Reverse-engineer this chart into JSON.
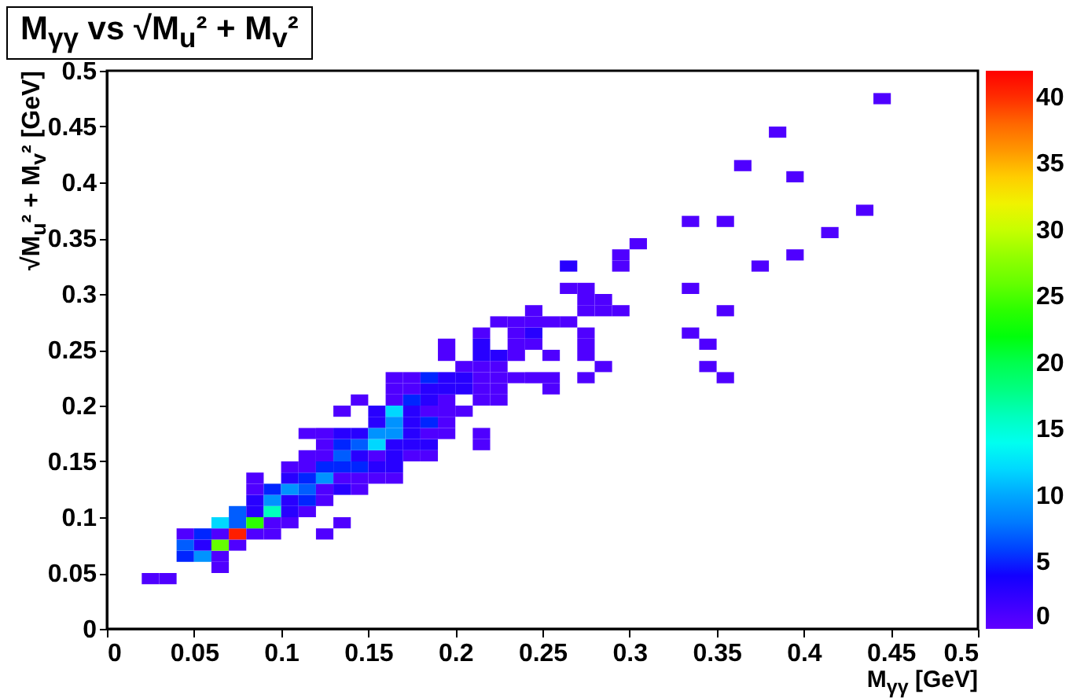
{
  "chart_data": {
    "type": "scatter",
    "marker": "square",
    "title": "M$_{γγ}$ vs √M$_{u}$² + M$_{v}$²",
    "xlabel": "M$_{γγ}$ [GeV]",
    "ylabel": "√M$_{u}$² + M$_{v}$² [GeV]",
    "xlim": [
      0,
      0.5
    ],
    "ylim": [
      0,
      0.5
    ],
    "xticks": [
      0,
      0.05,
      0.1,
      0.15,
      0.2,
      0.25,
      0.3,
      0.35,
      0.4,
      0.45,
      0.5
    ],
    "yticks": [
      0,
      0.05,
      0.1,
      0.15,
      0.2,
      0.25,
      0.3,
      0.35,
      0.4,
      0.45,
      0.5
    ],
    "clim": [
      0,
      42
    ],
    "cticks": [
      0,
      5,
      10,
      15,
      20,
      25,
      30,
      35,
      40
    ],
    "x": [
      0.025,
      0.035,
      0.065,
      0.045,
      0.055,
      0.065,
      0.045,
      0.055,
      0.065,
      0.075,
      0.045,
      0.055,
      0.065,
      0.075,
      0.085,
      0.095,
      0.125,
      0.065,
      0.075,
      0.085,
      0.095,
      0.105,
      0.135,
      0.075,
      0.085,
      0.095,
      0.105,
      0.115,
      0.085,
      0.095,
      0.105,
      0.115,
      0.125,
      0.085,
      0.095,
      0.105,
      0.115,
      0.125,
      0.135,
      0.145,
      0.085,
      0.105,
      0.115,
      0.125,
      0.135,
      0.145,
      0.155,
      0.165,
      0.105,
      0.115,
      0.125,
      0.135,
      0.145,
      0.155,
      0.165,
      0.115,
      0.125,
      0.135,
      0.145,
      0.155,
      0.165,
      0.175,
      0.185,
      0.125,
      0.135,
      0.145,
      0.155,
      0.165,
      0.175,
      0.185,
      0.215,
      0.115,
      0.125,
      0.135,
      0.145,
      0.155,
      0.165,
      0.175,
      0.185,
      0.195,
      0.215,
      0.155,
      0.165,
      0.175,
      0.185,
      0.195,
      0.135,
      0.155,
      0.165,
      0.175,
      0.185,
      0.195,
      0.205,
      0.145,
      0.165,
      0.175,
      0.185,
      0.195,
      0.215,
      0.225,
      0.165,
      0.175,
      0.185,
      0.195,
      0.205,
      0.215,
      0.225,
      0.255,
      0.165,
      0.175,
      0.185,
      0.195,
      0.205,
      0.215,
      0.225,
      0.235,
      0.245,
      0.255,
      0.275,
      0.355,
      0.205,
      0.215,
      0.225,
      0.285,
      0.345,
      0.195,
      0.215,
      0.225,
      0.235,
      0.255,
      0.275,
      0.195,
      0.215,
      0.235,
      0.245,
      0.275,
      0.345,
      0.215,
      0.235,
      0.245,
      0.275,
      0.335,
      0.225,
      0.235,
      0.245,
      0.255,
      0.265,
      0.245,
      0.275,
      0.285,
      0.295,
      0.355,
      0.275,
      0.285,
      0.265,
      0.275,
      0.335,
      0.265,
      0.295,
      0.375,
      0.295,
      0.395,
      0.305,
      0.415,
      0.335,
      0.355,
      0.435,
      0.395,
      0.365,
      0.385,
      0.445
    ],
    "values": [
      0.045,
      0.045,
      0.055,
      0.065,
      0.065,
      0.065,
      0.075,
      0.075,
      0.075,
      0.075,
      0.085,
      0.085,
      0.085,
      0.085,
      0.085,
      0.085,
      0.085,
      0.095,
      0.095,
      0.095,
      0.095,
      0.095,
      0.095,
      0.105,
      0.105,
      0.105,
      0.105,
      0.105,
      0.115,
      0.115,
      0.115,
      0.115,
      0.115,
      0.125,
      0.125,
      0.125,
      0.125,
      0.125,
      0.125,
      0.125,
      0.135,
      0.135,
      0.135,
      0.135,
      0.135,
      0.135,
      0.135,
      0.135,
      0.145,
      0.145,
      0.145,
      0.145,
      0.145,
      0.145,
      0.145,
      0.155,
      0.155,
      0.155,
      0.155,
      0.155,
      0.155,
      0.155,
      0.155,
      0.165,
      0.165,
      0.165,
      0.165,
      0.165,
      0.165,
      0.165,
      0.165,
      0.175,
      0.175,
      0.175,
      0.175,
      0.175,
      0.175,
      0.175,
      0.175,
      0.175,
      0.175,
      0.185,
      0.185,
      0.185,
      0.185,
      0.185,
      0.195,
      0.195,
      0.195,
      0.195,
      0.195,
      0.195,
      0.195,
      0.205,
      0.205,
      0.205,
      0.205,
      0.205,
      0.205,
      0.205,
      0.215,
      0.215,
      0.215,
      0.215,
      0.215,
      0.215,
      0.215,
      0.215,
      0.225,
      0.225,
      0.225,
      0.225,
      0.225,
      0.225,
      0.225,
      0.225,
      0.225,
      0.225,
      0.225,
      0.225,
      0.235,
      0.235,
      0.235,
      0.235,
      0.235,
      0.245,
      0.245,
      0.245,
      0.245,
      0.245,
      0.245,
      0.255,
      0.255,
      0.255,
      0.255,
      0.255,
      0.255,
      0.265,
      0.265,
      0.265,
      0.265,
      0.265,
      0.275,
      0.275,
      0.275,
      0.275,
      0.275,
      0.285,
      0.285,
      0.285,
      0.285,
      0.285,
      0.295,
      0.295,
      0.305,
      0.305,
      0.305,
      0.325,
      0.325,
      0.325,
      0.335,
      0.335,
      0.345,
      0.355,
      0.365,
      0.365,
      0.375,
      0.405,
      0.415,
      0.445,
      0.475
    ],
    "cvalues": [
      1,
      1,
      1,
      5,
      9,
      1,
      7,
      3,
      26,
      1,
      1,
      5,
      1,
      41,
      1,
      1,
      1,
      12,
      7,
      24,
      1,
      1,
      1,
      7,
      3,
      16,
      3,
      1,
      3,
      9,
      3,
      5,
      1,
      1,
      5,
      9,
      7,
      1,
      3,
      1,
      1,
      3,
      5,
      9,
      1,
      1,
      1,
      1,
      1,
      1,
      5,
      5,
      5,
      3,
      3,
      1,
      1,
      7,
      3,
      1,
      3,
      1,
      1,
      1,
      5,
      7,
      12,
      3,
      3,
      3,
      1,
      1,
      1,
      3,
      3,
      9,
      9,
      3,
      1,
      1,
      1,
      3,
      9,
      3,
      5,
      1,
      1,
      3,
      12,
      3,
      1,
      1,
      1,
      1,
      1,
      5,
      3,
      1,
      1,
      1,
      1,
      1,
      3,
      3,
      3,
      1,
      1,
      1,
      1,
      1,
      5,
      3,
      3,
      1,
      1,
      1,
      1,
      1,
      1,
      1,
      1,
      1,
      1,
      1,
      1,
      1,
      3,
      3,
      1,
      1,
      1,
      1,
      3,
      1,
      1,
      1,
      1,
      1,
      1,
      3,
      1,
      1,
      1,
      1,
      1,
      1,
      1,
      1,
      1,
      1,
      1,
      1,
      1,
      1,
      1,
      1,
      1,
      3,
      1,
      1,
      1,
      1,
      1,
      1,
      1,
      1,
      1,
      1,
      1,
      1,
      1
    ]
  }
}
